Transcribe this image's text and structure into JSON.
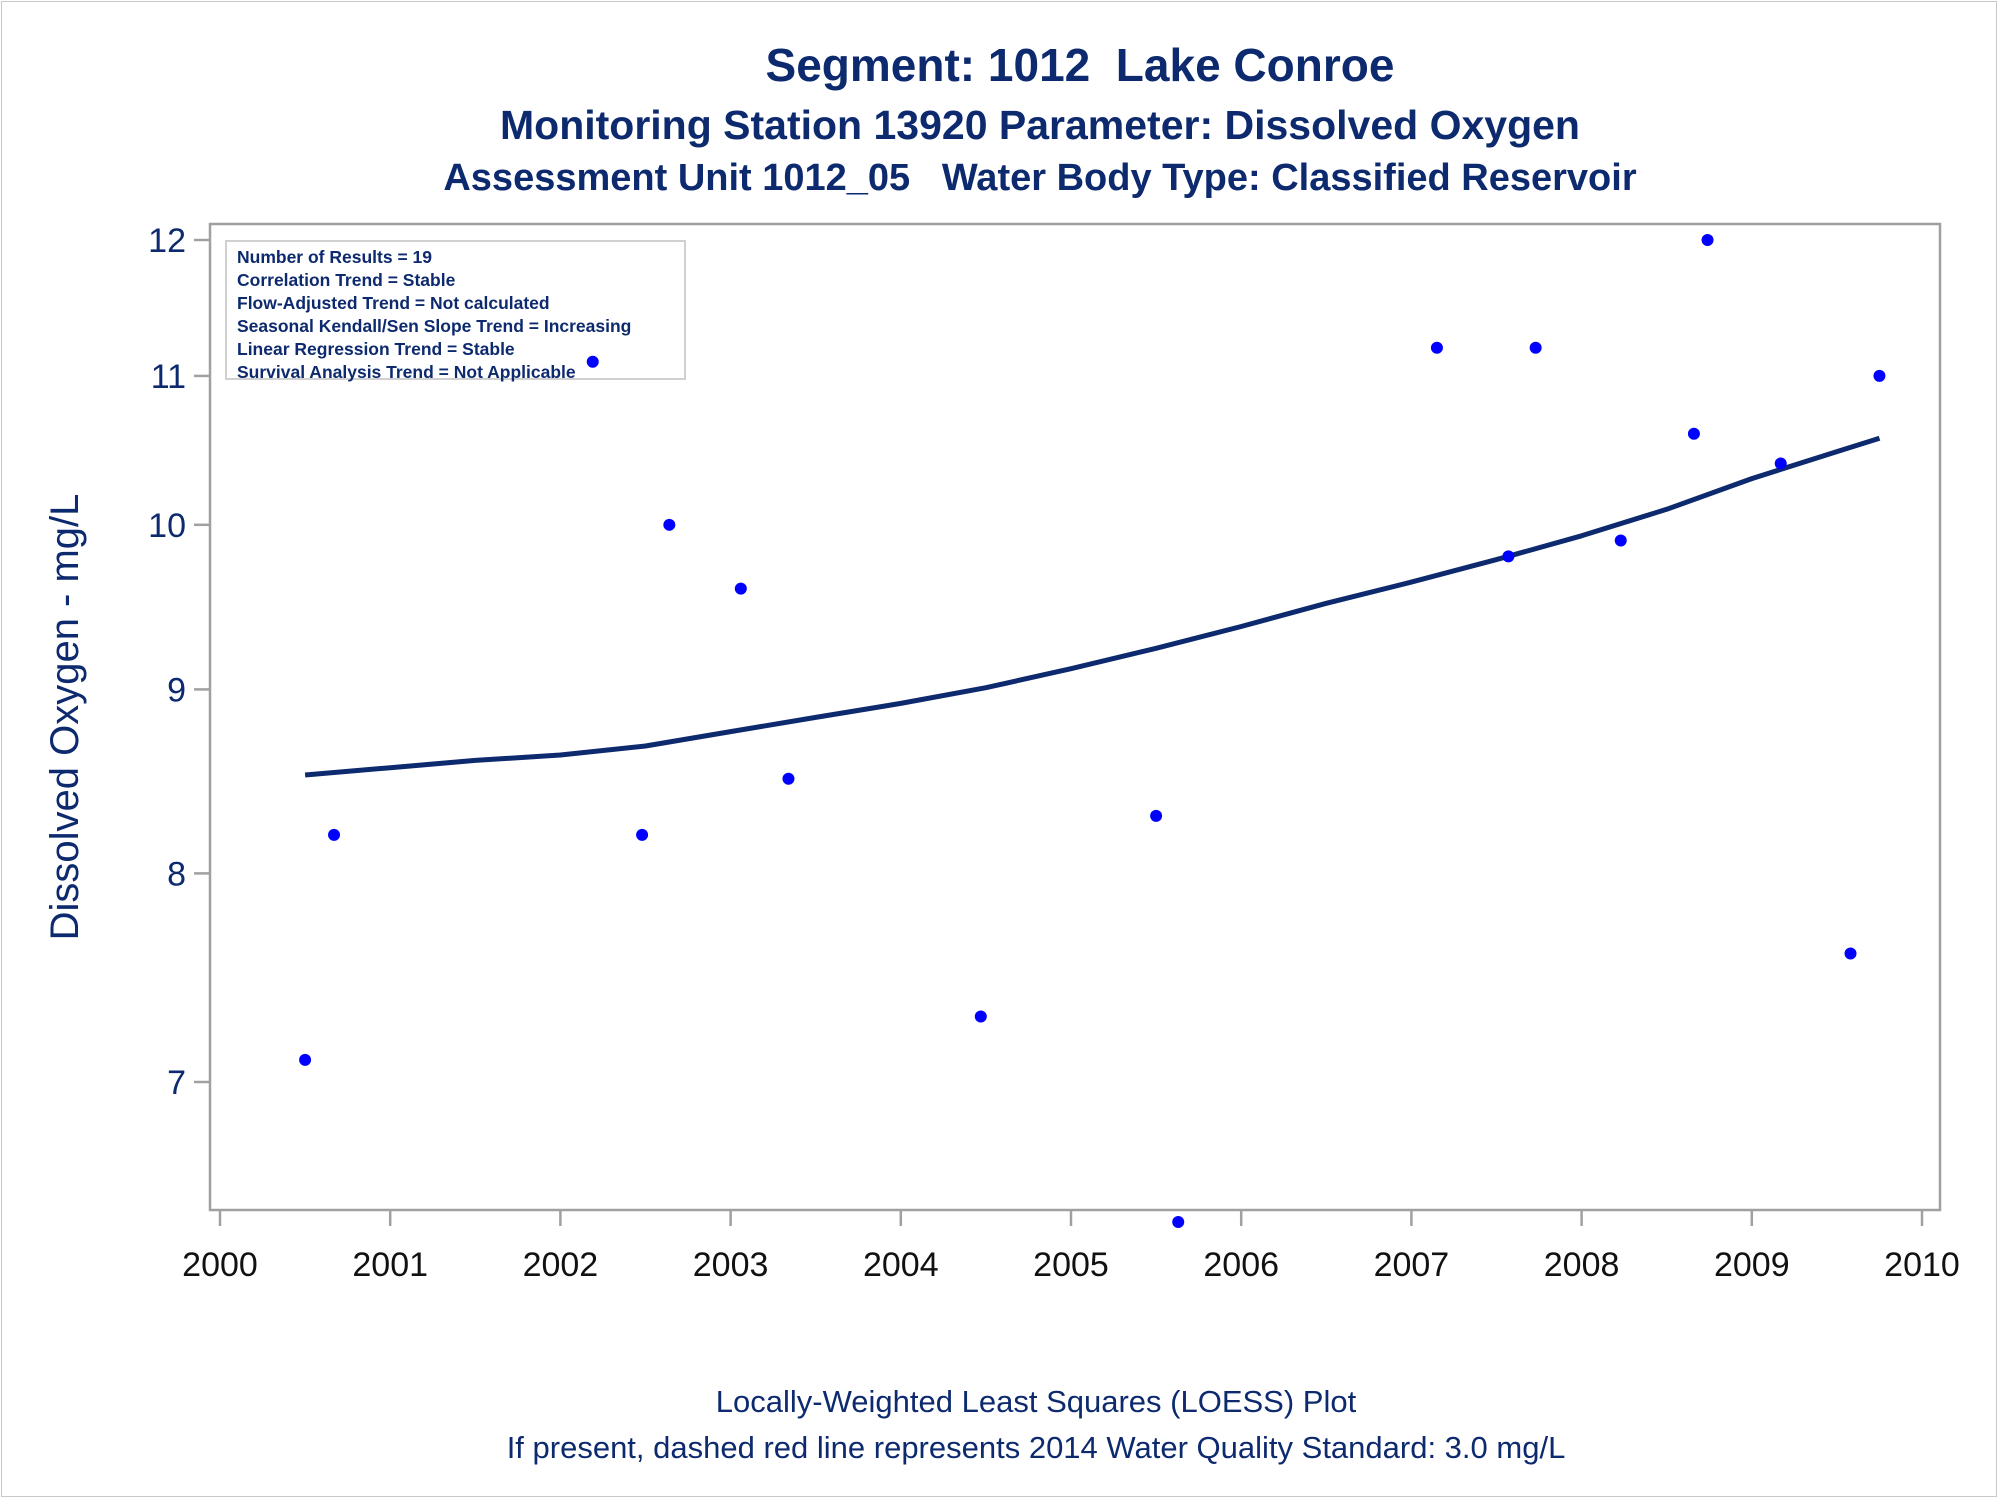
{
  "titles": {
    "line1": "Segment: 1012  Lake Conroe",
    "line2": "Monitoring Station 13920 Parameter: Dissolved Oxygen",
    "line3": "Assessment Unit 1012_05   Water Body Type: Classified Reservoir"
  },
  "footnotes": {
    "line1": "Locally-Weighted Least Squares (LOESS) Plot",
    "line2": "If present, dashed red line represents 2014 Water Quality Standard: 3.0 mg/L"
  },
  "legend": {
    "items": [
      "Number of Results = 19",
      "Correlation Trend = Stable",
      "Flow-Adjusted Trend = Not calculated",
      "Seasonal Kendall/Sen Slope Trend = Increasing",
      "Linear Regression Trend = Stable",
      "Survival Analysis Trend = Not Applicable"
    ]
  },
  "colors": {
    "title": "#0d2a6f",
    "points": "#0000ff",
    "loess": "#0d2a6f",
    "axis": "#a0a0a0"
  },
  "chart_data": {
    "type": "scatter",
    "ylabel": "Dissolved Oxygen - mg/L",
    "xlabel": "",
    "xlim": [
      2000,
      2010
    ],
    "ylim": [
      6.4,
      12.1
    ],
    "y_scale": "log",
    "x_ticks": [
      2000,
      2001,
      2002,
      2003,
      2004,
      2005,
      2006,
      2007,
      2008,
      2009,
      2010
    ],
    "y_ticks": [
      7,
      8,
      9,
      10,
      11,
      12
    ],
    "grid": false,
    "series": [
      {
        "points": [
          {
            "x": 2000.5,
            "y": 7.1
          },
          {
            "x": 2000.67,
            "y": 8.2
          },
          {
            "x": 2002.19,
            "y": 11.1
          },
          {
            "x": 2002.48,
            "y": 8.2
          },
          {
            "x": 2002.64,
            "y": 10.0
          },
          {
            "x": 2003.06,
            "y": 9.6
          },
          {
            "x": 2003.34,
            "y": 8.5
          },
          {
            "x": 2004.47,
            "y": 7.3
          },
          {
            "x": 2005.5,
            "y": 8.3
          },
          {
            "x": 2005.63,
            "y": 6.4
          },
          {
            "x": 2007.15,
            "y": 11.2
          },
          {
            "x": 2007.57,
            "y": 9.8
          },
          {
            "x": 2007.73,
            "y": 11.2
          },
          {
            "x": 2008.23,
            "y": 9.9
          },
          {
            "x": 2008.66,
            "y": 10.6
          },
          {
            "x": 2008.74,
            "y": 12.0
          },
          {
            "x": 2009.17,
            "y": 10.4
          },
          {
            "x": 2009.58,
            "y": 7.6
          },
          {
            "x": 2009.75,
            "y": 11.0
          }
        ]
      },
      {
        "type": "line",
        "points": [
          {
            "x": 2000.5,
            "y": 8.52
          },
          {
            "x": 2001.0,
            "y": 8.56
          },
          {
            "x": 2001.5,
            "y": 8.6
          },
          {
            "x": 2002.0,
            "y": 8.63
          },
          {
            "x": 2002.5,
            "y": 8.68
          },
          {
            "x": 2003.0,
            "y": 8.76
          },
          {
            "x": 2003.5,
            "y": 8.84
          },
          {
            "x": 2004.0,
            "y": 8.92
          },
          {
            "x": 2004.5,
            "y": 9.01
          },
          {
            "x": 2005.0,
            "y": 9.12
          },
          {
            "x": 2005.5,
            "y": 9.24
          },
          {
            "x": 2006.0,
            "y": 9.37
          },
          {
            "x": 2006.5,
            "y": 9.51
          },
          {
            "x": 2007.0,
            "y": 9.64
          },
          {
            "x": 2007.5,
            "y": 9.78
          },
          {
            "x": 2008.0,
            "y": 9.93
          },
          {
            "x": 2008.5,
            "y": 10.1
          },
          {
            "x": 2009.0,
            "y": 10.3
          },
          {
            "x": 2009.5,
            "y": 10.48
          },
          {
            "x": 2009.75,
            "y": 10.57
          }
        ]
      }
    ]
  }
}
